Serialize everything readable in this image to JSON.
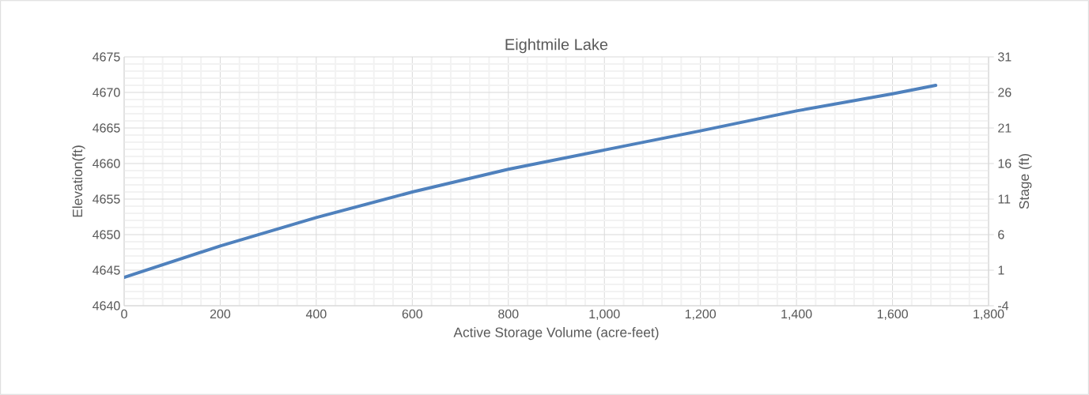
{
  "chart_data": {
    "type": "line",
    "title": "Eightmile Lake",
    "xlabel": "Active Storage Volume (acre-feet)",
    "ylabel": "Elevation(ft)",
    "y2label": "Stage (ft)",
    "series": [
      {
        "color": "#4f81bd",
        "x": [
          0,
          200,
          400,
          600,
          800,
          1000,
          1200,
          1400,
          1600,
          1690
        ],
        "values": [
          4644,
          4648.4,
          4652.4,
          4656,
          4659.2,
          4661.9,
          4664.6,
          4667.4,
          4669.8,
          4671
        ]
      }
    ],
    "xlim": [
      0,
      1800
    ],
    "xticks": [
      0,
      200,
      400,
      600,
      800,
      {
        "value": 1000,
        "label": "1,000"
      },
      {
        "value": 1200,
        "label": "1,200"
      },
      {
        "value": 1400,
        "label": "1,400"
      },
      {
        "value": 1600,
        "label": "1,600"
      },
      {
        "value": 1800,
        "label": "1,800"
      }
    ],
    "ylim": [
      4640,
      4675
    ],
    "yticks": [
      4640,
      4645,
      4650,
      4655,
      4660,
      4665,
      4670,
      4675
    ],
    "y2lim": [
      -4,
      31
    ],
    "y2ticks": [
      -4,
      1,
      6,
      11,
      16,
      21,
      26,
      31
    ],
    "grid": true,
    "marker": "none",
    "line_style": "solid"
  }
}
